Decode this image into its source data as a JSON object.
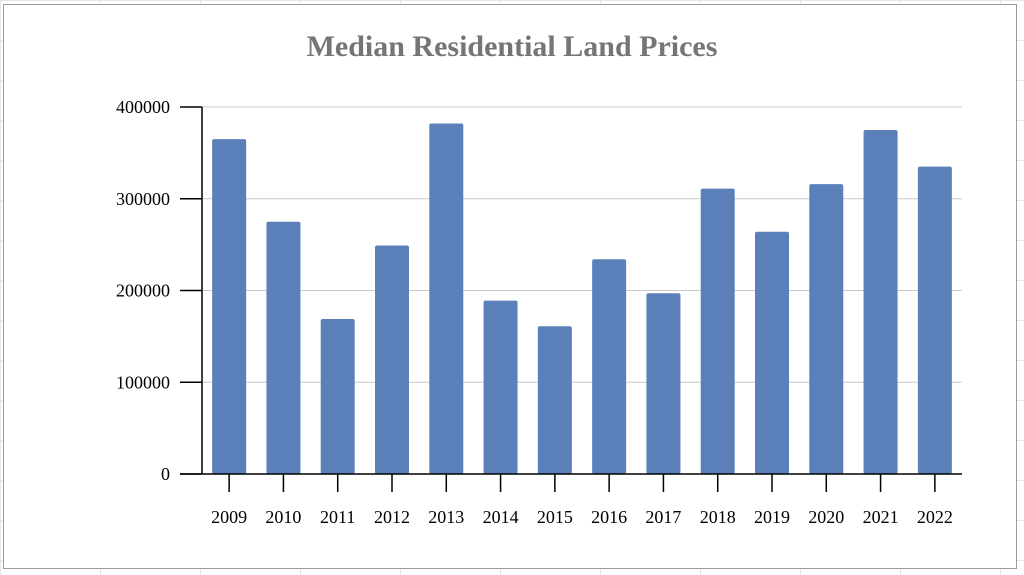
{
  "chart_data": {
    "type": "bar",
    "title": "Median Residential Land Prices",
    "xlabel": "",
    "ylabel": "",
    "categories": [
      "2009",
      "2010",
      "2011",
      "2012",
      "2013",
      "2014",
      "2015",
      "2016",
      "2017",
      "2018",
      "2019",
      "2020",
      "2021",
      "2022"
    ],
    "values": [
      365000,
      275000,
      169000,
      249000,
      382000,
      189000,
      161000,
      234000,
      197000,
      311000,
      264000,
      316000,
      375000,
      335000
    ],
    "ylim": [
      0,
      400000
    ],
    "yticks": [
      "0",
      "100000",
      "200000",
      "300000",
      "400000"
    ],
    "grid": true,
    "bar_color": "#5b80b9",
    "grid_color": "#c8c8c8",
    "title_color": "#757575"
  }
}
